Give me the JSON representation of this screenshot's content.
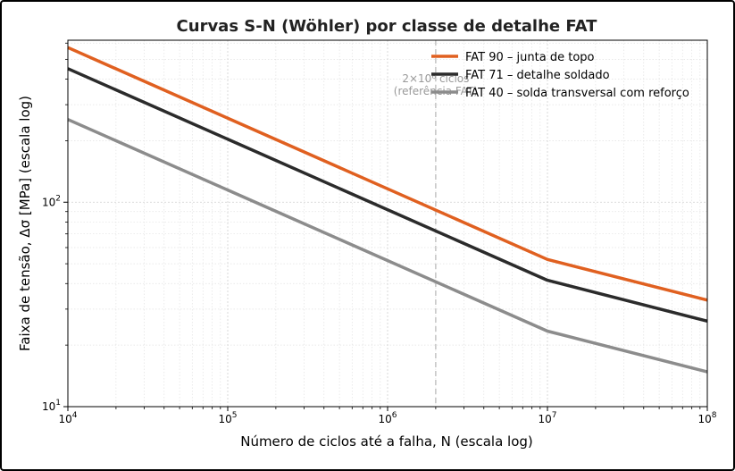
{
  "chart_data": {
    "type": "line",
    "title": "Curvas S-N (Wöhler) por classe de detalhe FAT",
    "xlabel": "Número de ciclos até a falha, N (escala log)",
    "ylabel": "Faixa de tensão, Δσ [MPa] (escala log)",
    "x_scale": "log",
    "y_scale": "log",
    "xlim": [
      10000,
      100000000
    ],
    "ylim": [
      10,
      620
    ],
    "grid": "on (major and minor, dotted)",
    "legend_position": "top-right",
    "x_ticks": [
      {
        "value": 10000,
        "base": "10",
        "exp": "4"
      },
      {
        "value": 100000,
        "base": "10",
        "exp": "5"
      },
      {
        "value": 1000000,
        "base": "10",
        "exp": "6"
      },
      {
        "value": 10000000,
        "base": "10",
        "exp": "7"
      },
      {
        "value": 100000000,
        "base": "10",
        "exp": "8"
      }
    ],
    "y_ticks": [
      {
        "value": 10,
        "base": "10",
        "exp": "1"
      },
      {
        "value": 100,
        "base": "10",
        "exp": "2"
      }
    ],
    "reference_line": {
      "x": 2000000,
      "label_line1": "2×10⁶ ciclos",
      "label_line2": "(referência FAT)",
      "color": "#bbbbbb"
    },
    "series": [
      {
        "name": "FAT 90 – junta de topo",
        "color": "#e06020",
        "x": [
          10000,
          10000000,
          100000000
        ],
        "y": [
          571,
          52.5,
          33.2
        ]
      },
      {
        "name": "FAT 71 – detalhe soldado",
        "color": "#2b2b2b",
        "x": [
          10000,
          10000000,
          100000000
        ],
        "y": [
          450,
          41.5,
          26.2
        ]
      },
      {
        "name": "FAT 40 – solda transversal com reforço",
        "color": "#8c8c8c",
        "x": [
          10000,
          10000000,
          100000000
        ],
        "y": [
          254,
          23.4,
          14.8
        ]
      }
    ]
  }
}
